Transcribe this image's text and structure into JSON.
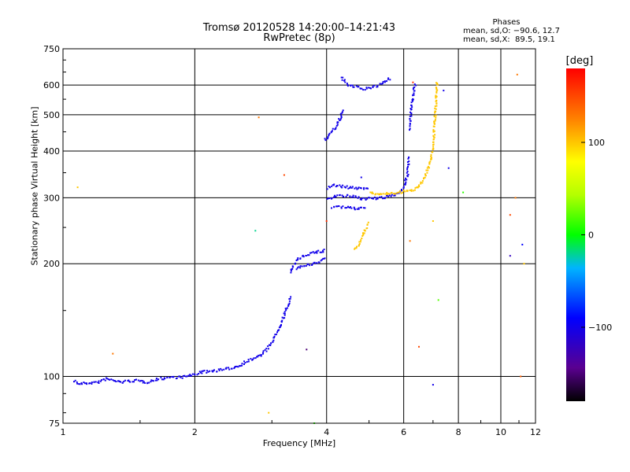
{
  "header": {
    "title_line1": "Tromsø 20120528 14:20:00–14:21:43",
    "title_line2": "RwPretec (8p)"
  },
  "stats": {
    "heading": "Phases",
    "line_o": "mean, sd,O: −90.6, 12.7",
    "line_x": "mean, sd,X:  89.5, 19.1"
  },
  "colorbar": {
    "title": "[deg]",
    "ticks": [
      "100",
      "0",
      "−100"
    ],
    "tick_values": [
      100,
      0,
      -100
    ],
    "range": [
      -180,
      180
    ]
  },
  "chart_data": {
    "type": "scatter",
    "xlabel": "Frequency [MHz]",
    "ylabel": "Stationary phase Virtual Height [km]",
    "xscale": "log",
    "yscale": "log",
    "xlim": [
      1,
      12
    ],
    "ylim": [
      75,
      750
    ],
    "x_ticks": [
      1,
      2,
      4,
      6,
      8,
      10,
      12
    ],
    "x_tick_labels": [
      "1",
      "2",
      "4",
      "6",
      "8",
      "10",
      "12"
    ],
    "y_ticks": [
      75,
      100,
      200,
      300,
      400,
      500,
      600,
      750
    ],
    "y_tick_labels": [
      "75",
      "100",
      "200",
      "300",
      "400",
      "500",
      "600",
      "750"
    ],
    "grid": true,
    "traces": [
      {
        "phase_deg": -100,
        "points": [
          [
            1.06,
            98
          ],
          [
            1.08,
            96
          ],
          [
            1.2,
            97
          ],
          [
            1.25,
            99
          ],
          [
            1.35,
            97
          ],
          [
            1.45,
            98
          ],
          [
            1.55,
            97
          ],
          [
            1.65,
            99
          ],
          [
            1.75,
            100
          ],
          [
            1.85,
            100
          ],
          [
            1.95,
            101
          ],
          [
            2.05,
            103
          ],
          [
            2.2,
            104
          ],
          [
            2.35,
            105
          ],
          [
            2.5,
            107
          ],
          [
            2.6,
            110
          ],
          [
            2.7,
            112
          ],
          [
            2.8,
            114
          ],
          [
            2.9,
            118
          ],
          [
            3.0,
            125
          ],
          [
            3.1,
            135
          ],
          [
            3.2,
            148
          ],
          [
            3.25,
            155
          ],
          [
            3.3,
            165
          ]
        ]
      },
      {
        "phase_deg": -100,
        "points": [
          [
            3.3,
            190
          ],
          [
            3.4,
            205
          ],
          [
            3.5,
            210
          ],
          [
            3.6,
            213
          ],
          [
            3.7,
            215
          ],
          [
            3.8,
            216
          ],
          [
            3.9,
            217
          ],
          [
            3.95,
            220
          ]
        ]
      },
      {
        "phase_deg": -100,
        "points": [
          [
            3.4,
            195
          ],
          [
            3.5,
            198
          ],
          [
            3.6,
            199
          ],
          [
            3.7,
            200
          ],
          [
            3.8,
            202
          ],
          [
            3.9,
            205
          ],
          [
            3.95,
            210
          ]
        ]
      },
      {
        "phase_deg": -100,
        "points": [
          [
            4.0,
            320
          ],
          [
            4.1,
            325
          ],
          [
            4.2,
            325
          ],
          [
            4.4,
            322
          ],
          [
            4.6,
            320
          ],
          [
            4.8,
            320
          ],
          [
            5.0,
            318
          ]
        ]
      },
      {
        "phase_deg": -100,
        "points": [
          [
            4.0,
            300
          ],
          [
            4.2,
            305
          ],
          [
            4.4,
            305
          ],
          [
            4.6,
            303
          ],
          [
            4.8,
            300
          ],
          [
            5.0,
            300
          ],
          [
            5.2,
            300
          ],
          [
            5.4,
            302
          ],
          [
            5.6,
            305
          ],
          [
            5.8,
            310
          ],
          [
            6.0,
            325
          ],
          [
            6.1,
            350
          ],
          [
            6.15,
            390
          ]
        ]
      },
      {
        "phase_deg": -100,
        "points": [
          [
            4.1,
            285
          ],
          [
            4.3,
            285
          ],
          [
            4.5,
            283
          ],
          [
            4.7,
            282
          ],
          [
            4.9,
            285
          ]
        ]
      },
      {
        "phase_deg": -100,
        "points": [
          [
            3.95,
            430
          ],
          [
            4.05,
            445
          ],
          [
            4.15,
            460
          ],
          [
            4.25,
            480
          ],
          [
            4.3,
            500
          ],
          [
            4.35,
            520
          ]
        ]
      },
      {
        "phase_deg": -100,
        "points": [
          [
            4.3,
            630
          ],
          [
            4.5,
            600
          ],
          [
            4.8,
            590
          ],
          [
            5.0,
            590
          ],
          [
            5.2,
            600
          ],
          [
            5.4,
            615
          ],
          [
            5.6,
            630
          ]
        ]
      },
      {
        "phase_deg": -100,
        "points": [
          [
            6.15,
            460
          ],
          [
            6.2,
            500
          ],
          [
            6.25,
            540
          ],
          [
            6.3,
            580
          ],
          [
            6.35,
            610
          ]
        ]
      },
      {
        "phase_deg": 100,
        "points": [
          [
            4.6,
            220
          ],
          [
            4.7,
            225
          ],
          [
            4.8,
            235
          ],
          [
            4.9,
            250
          ],
          [
            4.95,
            260
          ]
        ]
      },
      {
        "phase_deg": 100,
        "points": [
          [
            5.0,
            310
          ],
          [
            5.3,
            308
          ],
          [
            5.6,
            310
          ],
          [
            5.9,
            312
          ],
          [
            6.2,
            315
          ],
          [
            6.4,
            320
          ],
          [
            6.6,
            335
          ],
          [
            6.8,
            360
          ],
          [
            6.95,
            400
          ],
          [
            7.0,
            440
          ],
          [
            7.05,
            500
          ],
          [
            7.1,
            560
          ],
          [
            7.12,
            620
          ]
        ]
      }
    ],
    "scattered_points": [
      [
        1.08,
        320,
        100
      ],
      [
        1.3,
        115,
        130
      ],
      [
        2.75,
        245,
        -20
      ],
      [
        2.8,
        492,
        130
      ],
      [
        2.95,
        80,
        100
      ],
      [
        3.2,
        345,
        150
      ],
      [
        3.6,
        118,
        -150
      ],
      [
        3.75,
        75,
        10
      ],
      [
        4.0,
        260,
        160
      ],
      [
        4.8,
        340,
        -100
      ],
      [
        6.2,
        230,
        130
      ],
      [
        6.3,
        610,
        160
      ],
      [
        6.5,
        120,
        150
      ],
      [
        7.0,
        260,
        100
      ],
      [
        7.0,
        95,
        -100
      ],
      [
        7.2,
        160,
        20
      ],
      [
        7.4,
        580,
        -100
      ],
      [
        7.6,
        360,
        -100
      ],
      [
        8.2,
        310,
        10
      ],
      [
        10.5,
        270,
        150
      ],
      [
        10.5,
        210,
        -120
      ],
      [
        10.8,
        300,
        130
      ],
      [
        10.9,
        640,
        130
      ],
      [
        11.1,
        100,
        140
      ],
      [
        11.2,
        225,
        -90
      ],
      [
        11.3,
        200,
        100
      ]
    ]
  }
}
